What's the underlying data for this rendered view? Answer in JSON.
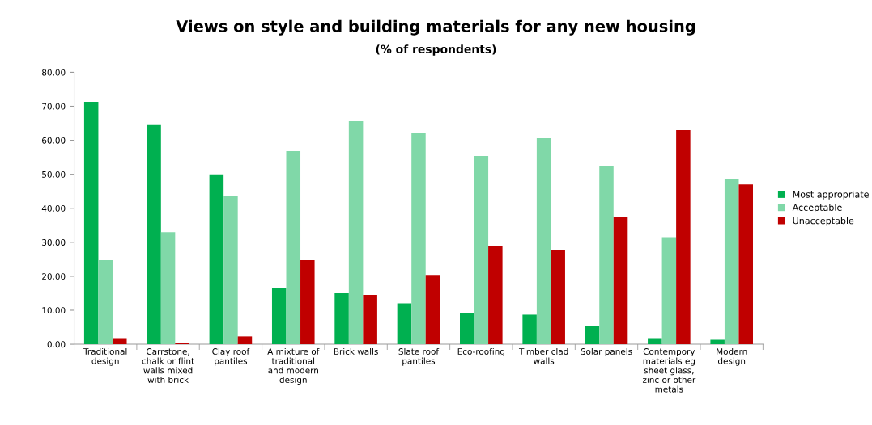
{
  "chart_data": {
    "type": "bar",
    "title": "Views on style and building materials for any new housing",
    "subtitle": "(% of respondents)",
    "categories": [
      "Traditional\ndesign",
      "Carrstone,\nchalk or flint\nwalls mixed\nwith brick",
      "Clay roof\npantiles",
      "A mixture of\ntraditional\nand modern\ndesign",
      "Brick walls",
      "Slate roof\npantiles",
      "Eco-roofing",
      "Timber clad\nwalls",
      "Solar panels",
      "Contempory\nmaterials eg\nsheet glass,\nzinc or other\nmetals",
      "Modern\ndesign"
    ],
    "series": [
      {
        "name": "Most appropriate",
        "color": "#00b050",
        "values": [
          71.3,
          64.5,
          50.0,
          16.5,
          15.0,
          12.0,
          9.2,
          8.7,
          5.3,
          1.8,
          1.3
        ]
      },
      {
        "name": "Acceptable",
        "color": "#80d8a8",
        "values": [
          24.7,
          33.0,
          43.6,
          56.8,
          65.6,
          62.2,
          55.4,
          60.6,
          52.3,
          31.5,
          48.5
        ]
      },
      {
        "name": "Unacceptable",
        "color": "#c00000",
        "values": [
          1.8,
          0.3,
          2.3,
          24.7,
          14.5,
          20.4,
          29.0,
          27.7,
          37.4,
          63.0,
          47.0
        ]
      }
    ],
    "ylim": [
      0,
      80
    ],
    "yticks": [
      {
        "value": 0,
        "label": "0.00"
      },
      {
        "value": 10,
        "label": "10.00"
      },
      {
        "value": 20,
        "label": "20.00"
      },
      {
        "value": 30,
        "label": "30.00"
      },
      {
        "value": 40,
        "label": "40.00"
      },
      {
        "value": 50,
        "label": "50.00"
      },
      {
        "value": 60,
        "label": "60.00"
      },
      {
        "value": 70,
        "label": "70.00"
      },
      {
        "value": 80,
        "label": "80.00"
      }
    ],
    "legend": "right"
  }
}
